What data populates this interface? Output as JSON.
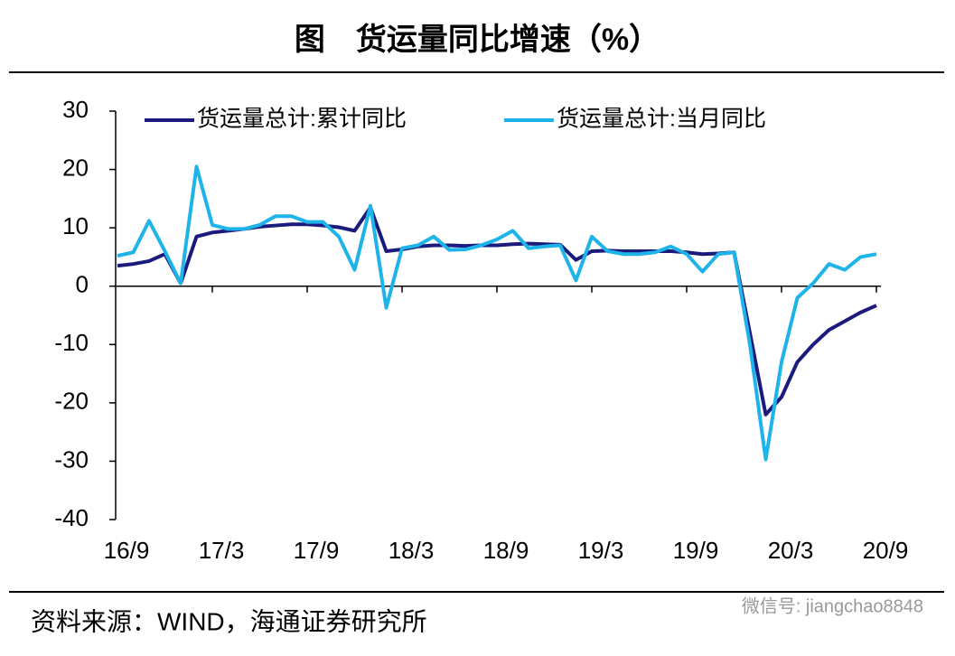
{
  "chart_data": {
    "type": "line",
    "title": "图　货运量同比增速（%）",
    "categories": [
      "16/9",
      null,
      null,
      null,
      null,
      null,
      "17/3",
      null,
      null,
      null,
      null,
      null,
      "17/9",
      null,
      null,
      null,
      null,
      null,
      "18/3",
      null,
      null,
      null,
      null,
      null,
      "18/9",
      null,
      null,
      null,
      null,
      null,
      "19/3",
      null,
      null,
      null,
      null,
      null,
      "19/9",
      null,
      null,
      null,
      null,
      null,
      "20/3",
      null,
      null,
      null,
      null,
      null,
      "20/9"
    ],
    "series": [
      {
        "name": "货运量总计:累计同比",
        "color": "#1b1b7d",
        "values": [
          3.5,
          3.8,
          4.3,
          5.5,
          0.5,
          8.5,
          9.2,
          9.5,
          9.8,
          10.2,
          10.4,
          10.6,
          10.6,
          10.4,
          10.1,
          9.5,
          13.5,
          6,
          6.3,
          6.8,
          7,
          7,
          6.9,
          7,
          7,
          7.2,
          7.3,
          7.2,
          7.1,
          4.5,
          6,
          6.1,
          6,
          6,
          6,
          6,
          5.8,
          5.5,
          5.6,
          5.8,
          -8,
          -22,
          -19,
          -13,
          -10,
          -7.5,
          -6,
          -4.5,
          -3.3
        ]
      },
      {
        "name": "货运量总计:当月同比",
        "color": "#1eb4ea",
        "values": [
          5.2,
          5.8,
          11.2,
          6,
          0.5,
          20.5,
          10.5,
          9.8,
          9.8,
          10.5,
          12,
          12,
          11,
          11,
          8.5,
          2.8,
          13.8,
          -3.7,
          6.5,
          7,
          8.5,
          6.2,
          6.3,
          7,
          8,
          9.5,
          6.5,
          6.8,
          7,
          1,
          8.5,
          6,
          5.5,
          5.5,
          5.8,
          6.8,
          5.5,
          2.5,
          5.5,
          5.8,
          -10,
          -29.7,
          -13,
          -2,
          0.5,
          3.8,
          2.8,
          5,
          5.5
        ]
      }
    ],
    "ylim": [
      -40,
      30
    ],
    "yticks": [
      -40,
      -30,
      -20,
      -10,
      0,
      10,
      20,
      30
    ],
    "source": "资料来源：WIND，海通证券研究所",
    "watermark": "微信号: jiangchao8848"
  }
}
